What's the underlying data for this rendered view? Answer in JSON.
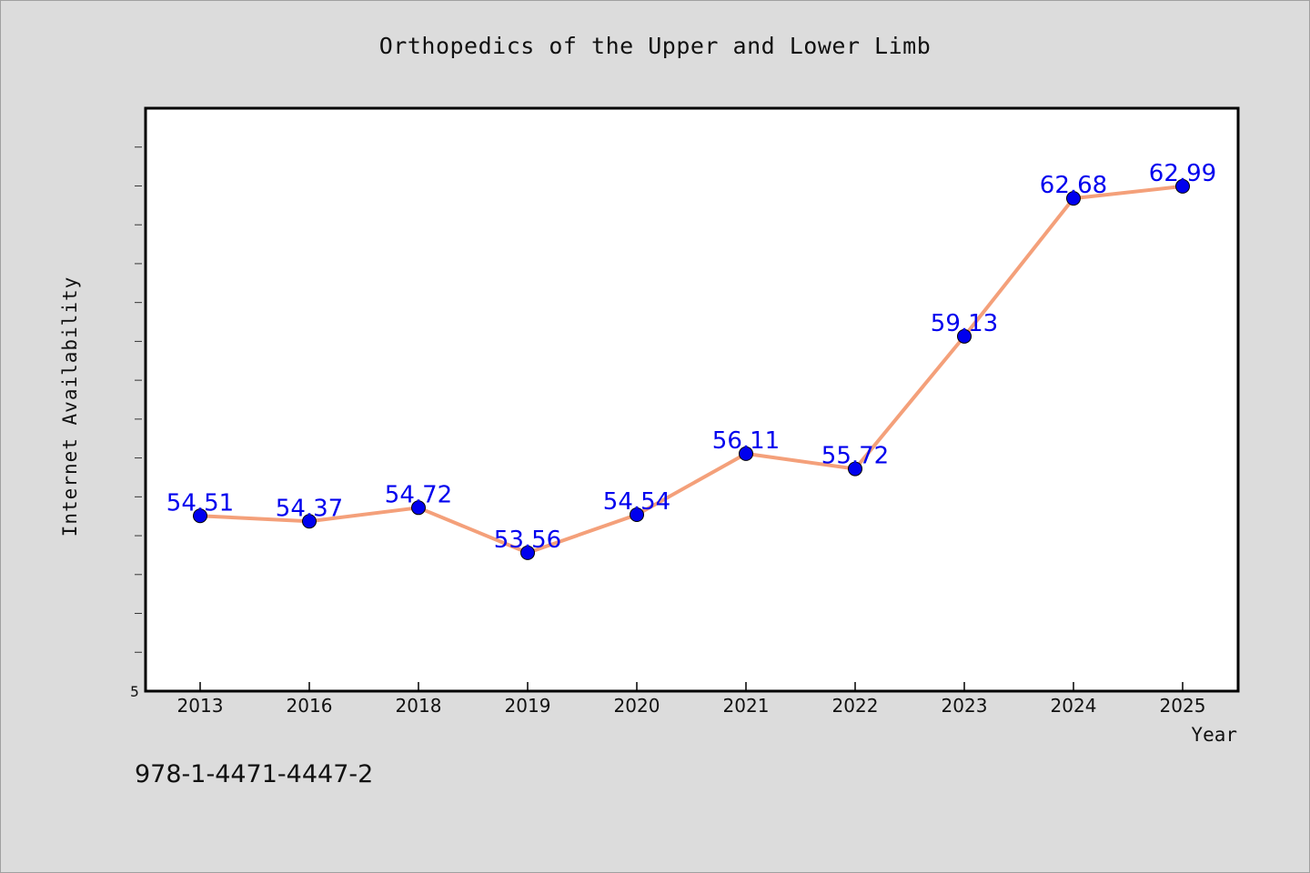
{
  "chart_data": {
    "type": "line",
    "title": "Orthopedics of the Upper and Lower Limb",
    "xlabel": "Year",
    "ylabel": "Internet Availability",
    "categories": [
      "2013",
      "2016",
      "2018",
      "2019",
      "2020",
      "2021",
      "2022",
      "2023",
      "2024",
      "2025"
    ],
    "series": [
      {
        "values": [
          54.51,
          54.37,
          54.72,
          53.56,
          54.54,
          56.11,
          55.72,
          59.13,
          62.68,
          62.99
        ]
      }
    ],
    "data_labels": [
      "54.51",
      "54.37",
      "54.72",
      "53.56",
      "54.54",
      "56.11",
      "55.72",
      "59.13",
      "62.68",
      "62.99"
    ],
    "y_tick_label": "5",
    "ylim": [
      50,
      65
    ],
    "grid": false,
    "line_color": "#f4a07a",
    "marker_color": "#0000ee",
    "label_color": "#0000ee"
  },
  "footer": {
    "isbn": "978-1-4471-4447-2"
  }
}
